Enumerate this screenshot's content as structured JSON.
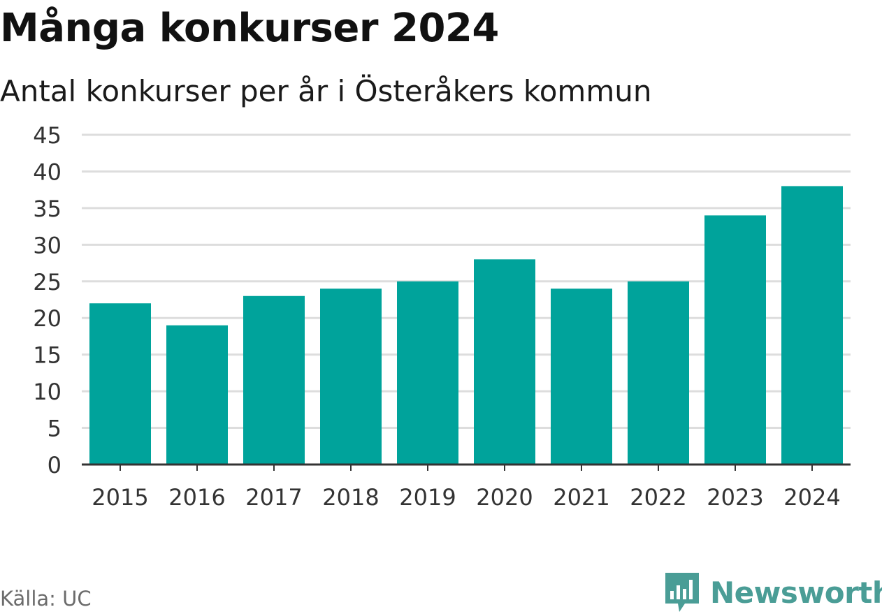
{
  "header": {
    "title": "Många konkurser 2024",
    "subtitle": "Antal konkurser per år i Österåkers kommun"
  },
  "footer": {
    "source": "Källa: UC",
    "brand": "Newsworthy",
    "brand_icon": "newsworthy-logo-icon"
  },
  "colors": {
    "bar": "#00a39b",
    "grid": "#dddddd",
    "axis": "#333333",
    "tick_text": "#333333",
    "brand": "#4a9d96"
  },
  "chart_data": {
    "type": "bar",
    "title": "Många konkurser 2024",
    "subtitle": "Antal konkurser per år i Österåkers kommun",
    "xlabel": "",
    "ylabel": "",
    "categories": [
      "2015",
      "2016",
      "2017",
      "2018",
      "2019",
      "2020",
      "2021",
      "2022",
      "2023",
      "2024"
    ],
    "values": [
      22,
      19,
      23,
      24,
      25,
      28,
      24,
      25,
      34,
      38
    ],
    "ylim": [
      0,
      45
    ],
    "yticks": [
      0,
      5,
      10,
      15,
      20,
      25,
      30,
      35,
      40,
      45
    ],
    "grid": true,
    "legend": "none"
  }
}
